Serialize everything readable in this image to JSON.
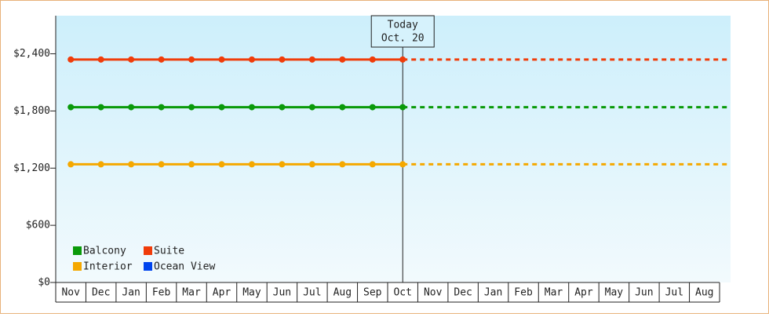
{
  "chart_data": {
    "type": "line",
    "categories": [
      "Nov",
      "Dec",
      "Jan",
      "Feb",
      "Mar",
      "Apr",
      "May",
      "Jun",
      "Jul",
      "Aug",
      "Sep",
      "Oct",
      "Nov",
      "Dec",
      "Jan",
      "Feb",
      "Mar",
      "Apr",
      "May",
      "Jun",
      "Jul",
      "Aug"
    ],
    "series": [
      {
        "name": "Balcony",
        "color": "#0a9a0a",
        "values": [
          1840,
          1840,
          1840,
          1840,
          1840,
          1840,
          1840,
          1840,
          1840,
          1840,
          1840,
          1840,
          null,
          null,
          null,
          null,
          null,
          null,
          null,
          null,
          null,
          null
        ]
      },
      {
        "name": "Suite",
        "color": "#f03c0a",
        "values": [
          2340,
          2340,
          2340,
          2340,
          2340,
          2340,
          2340,
          2340,
          2340,
          2340,
          2340,
          2340,
          null,
          null,
          null,
          null,
          null,
          null,
          null,
          null,
          null,
          null
        ]
      },
      {
        "name": "Interior",
        "color": "#f5a800",
        "values": [
          1240,
          1240,
          1240,
          1240,
          1240,
          1240,
          1240,
          1240,
          1240,
          1240,
          1240,
          1240,
          null,
          null,
          null,
          null,
          null,
          null,
          null,
          null,
          null,
          null
        ]
      },
      {
        "name": "Ocean View",
        "color": "#0044ee",
        "values": [
          null,
          null,
          null,
          null,
          null,
          null,
          null,
          null,
          null,
          null,
          null,
          null,
          null,
          null,
          null,
          null,
          null,
          null,
          null,
          null,
          null,
          null
        ]
      }
    ],
    "annotations": [
      "Today",
      "Oct. 20"
    ],
    "ylim": [
      0,
      2800
    ],
    "yticks": [
      {
        "value": 0,
        "label": "$0"
      },
      {
        "value": 600,
        "label": "$600"
      },
      {
        "value": 1200,
        "label": "$1,200"
      },
      {
        "value": 1800,
        "label": "$1,800"
      },
      {
        "value": 2400,
        "label": "$2,400"
      }
    ],
    "legend": "bottom-left"
  }
}
